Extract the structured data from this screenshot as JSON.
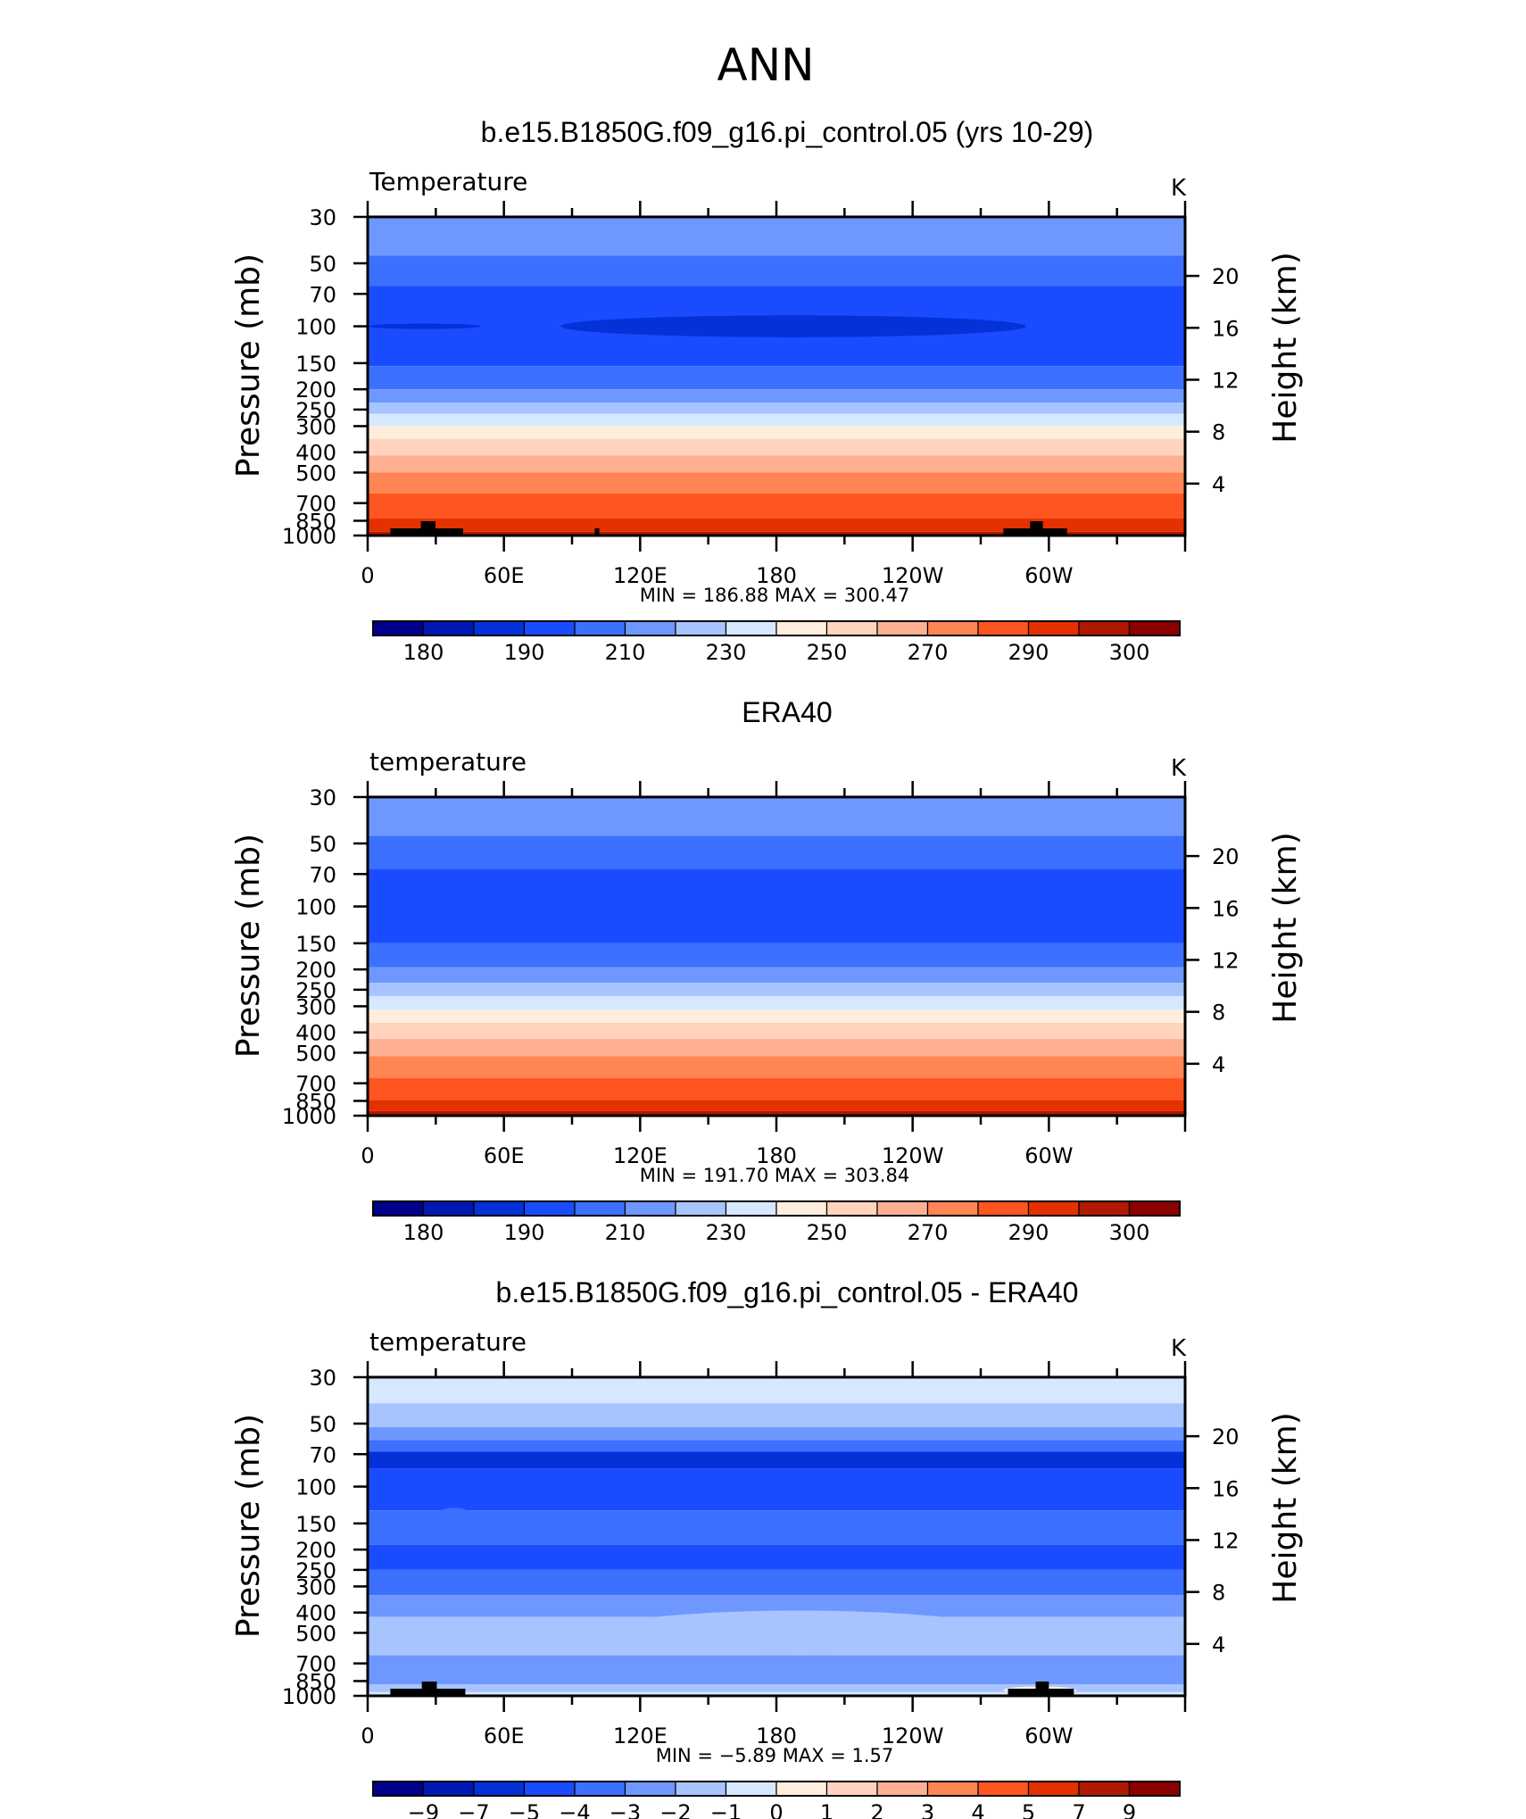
{
  "figure": {
    "title": "ANN"
  },
  "colors": {
    "frame": "#000000",
    "land": "#000000",
    "abs_palette": [
      "#00008b",
      "#0018b4",
      "#0432d8",
      "#1a4cff",
      "#3c70ff",
      "#6e98ff",
      "#a8c4ff",
      "#d6e8ff",
      "#ffeedd",
      "#ffd3be",
      "#ffb092",
      "#ff8654",
      "#ff5520",
      "#e53000",
      "#b01800",
      "#8b0000"
    ],
    "diff_palette": [
      "#00008b",
      "#0018b4",
      "#0432d8",
      "#1a4cff",
      "#3c70ff",
      "#6e98ff",
      "#a8c4ff",
      "#d6e8ff",
      "#ffeedd",
      "#ffd3be",
      "#ffb092",
      "#ff8654",
      "#ff5520",
      "#e53000",
      "#b01800",
      "#8b0000"
    ]
  },
  "chart_data": [
    {
      "type": "heatmap",
      "title": "b.e15.B1850G.f09_g16.pi_control.05 (yrs 10-29)",
      "variable_label": "Temperature",
      "units_label": "K",
      "ylabel": "Pressure (mb)",
      "ylabel_right": "Height (km)",
      "x_ticks": [
        "0",
        "60E",
        "120E",
        "180",
        "120W",
        "60W"
      ],
      "x_tick_lons": [
        0,
        60,
        120,
        180,
        240,
        300
      ],
      "xlim": [
        0,
        360
      ],
      "y_ticks": [
        "30",
        "50",
        "70",
        "100",
        "150",
        "200",
        "250",
        "300",
        "400",
        "500",
        "700",
        "850",
        "1000"
      ],
      "y_tick_values": [
        30,
        50,
        70,
        100,
        150,
        200,
        250,
        300,
        400,
        500,
        700,
        850,
        1000
      ],
      "ylim": [
        30,
        1000
      ],
      "y_scale": "log",
      "y_right_ticks": [
        "20",
        "16",
        "12",
        "8",
        "4"
      ],
      "y_right_values": [
        20,
        16,
        12,
        8,
        4
      ],
      "stats_label": "MIN  =  186.88   MAX  =  300.47",
      "colorbar": "abs",
      "land_blocks": [
        [
          10,
          42
        ],
        [
          280,
          308
        ],
        [
          100,
          102
        ]
      ],
      "bands": [
        {
          "p_top": 30,
          "p_bot": 46,
          "c": 5
        },
        {
          "p_top": 46,
          "p_bot": 64,
          "c": 4
        },
        {
          "p_top": 64,
          "p_bot": 155,
          "c": 3
        },
        {
          "p_top": 155,
          "p_bot": 200,
          "c": 4
        },
        {
          "p_top": 200,
          "p_bot": 232,
          "c": 5
        },
        {
          "p_top": 232,
          "p_bot": 262,
          "c": 6
        },
        {
          "p_top": 262,
          "p_bot": 300,
          "c": 7
        },
        {
          "p_top": 300,
          "p_bot": 345,
          "c": 8
        },
        {
          "p_top": 345,
          "p_bot": 415,
          "c": 9
        },
        {
          "p_top": 415,
          "p_bot": 500,
          "c": 10
        },
        {
          "p_top": 500,
          "p_bot": 630,
          "c": 11
        },
        {
          "p_top": 630,
          "p_bot": 830,
          "c": 12
        },
        {
          "p_top": 830,
          "p_bot": 960,
          "c": 13
        },
        {
          "p_top": 960,
          "p_bot": 1000,
          "c": 14
        }
      ],
      "blobs": [
        {
          "lon0": 85,
          "lon1": 290,
          "p_center": 100,
          "p_half": 12,
          "c": 2
        },
        {
          "lon0": 0,
          "lon1": 50,
          "p_center": 100,
          "p_half": 3,
          "c": 2
        }
      ]
    },
    {
      "type": "heatmap",
      "title": "ERA40",
      "variable_label": "temperature",
      "units_label": "K",
      "ylabel": "Pressure (mb)",
      "ylabel_right": "Height (km)",
      "x_ticks": [
        "0",
        "60E",
        "120E",
        "180",
        "120W",
        "60W"
      ],
      "x_tick_lons": [
        0,
        60,
        120,
        180,
        240,
        300
      ],
      "xlim": [
        0,
        360
      ],
      "y_ticks": [
        "30",
        "50",
        "70",
        "100",
        "150",
        "200",
        "250",
        "300",
        "400",
        "500",
        "700",
        "850",
        "1000"
      ],
      "y_tick_values": [
        30,
        50,
        70,
        100,
        150,
        200,
        250,
        300,
        400,
        500,
        700,
        850,
        1000
      ],
      "ylim": [
        30,
        1000
      ],
      "y_scale": "log",
      "y_right_ticks": [
        "20",
        "16",
        "12",
        "8",
        "4"
      ],
      "y_right_values": [
        20,
        16,
        12,
        8,
        4
      ],
      "stats_label": "MIN  =  191.70   MAX  =  303.84",
      "colorbar": "abs",
      "land_blocks": [],
      "bands": [
        {
          "p_top": 30,
          "p_bot": 46,
          "c": 5
        },
        {
          "p_top": 46,
          "p_bot": 66,
          "c": 4
        },
        {
          "p_top": 66,
          "p_bot": 150,
          "c": 3
        },
        {
          "p_top": 150,
          "p_bot": 195,
          "c": 4
        },
        {
          "p_top": 195,
          "p_bot": 232,
          "c": 5
        },
        {
          "p_top": 232,
          "p_bot": 268,
          "c": 6
        },
        {
          "p_top": 268,
          "p_bot": 312,
          "c": 7
        },
        {
          "p_top": 312,
          "p_bot": 360,
          "c": 8
        },
        {
          "p_top": 360,
          "p_bot": 430,
          "c": 9
        },
        {
          "p_top": 430,
          "p_bot": 520,
          "c": 10
        },
        {
          "p_top": 520,
          "p_bot": 660,
          "c": 11
        },
        {
          "p_top": 660,
          "p_bot": 840,
          "c": 12
        },
        {
          "p_top": 840,
          "p_bot": 950,
          "c": 13
        },
        {
          "p_top": 950,
          "p_bot": 1000,
          "c": 14
        }
      ],
      "blobs": []
    },
    {
      "type": "heatmap",
      "title": "b.e15.B1850G.f09_g16.pi_control.05 - ERA40",
      "variable_label": "temperature",
      "units_label": "K",
      "ylabel": "Pressure (mb)",
      "ylabel_right": "Height (km)",
      "x_ticks": [
        "0",
        "60E",
        "120E",
        "180",
        "120W",
        "60W"
      ],
      "x_tick_lons": [
        0,
        60,
        120,
        180,
        240,
        300
      ],
      "xlim": [
        0,
        360
      ],
      "y_ticks": [
        "30",
        "50",
        "70",
        "100",
        "150",
        "200",
        "250",
        "300",
        "400",
        "500",
        "700",
        "850",
        "1000"
      ],
      "y_tick_values": [
        30,
        50,
        70,
        100,
        150,
        200,
        250,
        300,
        400,
        500,
        700,
        850,
        1000
      ],
      "ylim": [
        30,
        1000
      ],
      "y_scale": "log",
      "y_right_ticks": [
        "20",
        "16",
        "12",
        "8",
        "4"
      ],
      "y_right_values": [
        20,
        16,
        12,
        8,
        4
      ],
      "stats_label": "MIN  =   −5.89   MAX  =     1.57",
      "colorbar": "diff",
      "land_blocks": [
        [
          10,
          43
        ],
        [
          282,
          311
        ]
      ],
      "bands": [
        {
          "p_top": 30,
          "p_bot": 40,
          "c": 7
        },
        {
          "p_top": 40,
          "p_bot": 52,
          "c": 6
        },
        {
          "p_top": 52,
          "p_bot": 60,
          "c": 5
        },
        {
          "p_top": 60,
          "p_bot": 68,
          "c": 4
        },
        {
          "p_top": 68,
          "p_bot": 82,
          "c": 2
        },
        {
          "p_top": 82,
          "p_bot": 130,
          "c": 3
        },
        {
          "p_top": 130,
          "p_bot": 190,
          "c": 4
        },
        {
          "p_top": 190,
          "p_bot": 250,
          "c": 3
        },
        {
          "p_top": 250,
          "p_bot": 330,
          "c": 4
        },
        {
          "p_top": 330,
          "p_bot": 420,
          "c": 5
        },
        {
          "p_top": 420,
          "p_bot": 640,
          "c": 6
        },
        {
          "p_top": 640,
          "p_bot": 880,
          "c": 5
        },
        {
          "p_top": 880,
          "p_bot": 960,
          "c": 6
        },
        {
          "p_top": 960,
          "p_bot": 1000,
          "c": 7
        }
      ],
      "blobs": [
        {
          "lon0": 100,
          "lon1": 280,
          "p_center": 500,
          "p_half": 120,
          "c": 6
        },
        {
          "lon0": 280,
          "lon1": 312,
          "p_center": 940,
          "p_half": 40,
          "c": 8
        },
        {
          "lon0": 28,
          "lon1": 48,
          "p_center": 145,
          "p_half": 20,
          "c": 4
        }
      ]
    }
  ],
  "colorbars": {
    "abs": [
      "180",
      "190",
      "210",
      "230",
      "250",
      "270",
      "290",
      "300"
    ],
    "diff": [
      "−9",
      "−7",
      "−5",
      "−4",
      "−3",
      "−2",
      "−1",
      "0",
      "1",
      "2",
      "3",
      "4",
      "5",
      "7",
      "9"
    ]
  }
}
